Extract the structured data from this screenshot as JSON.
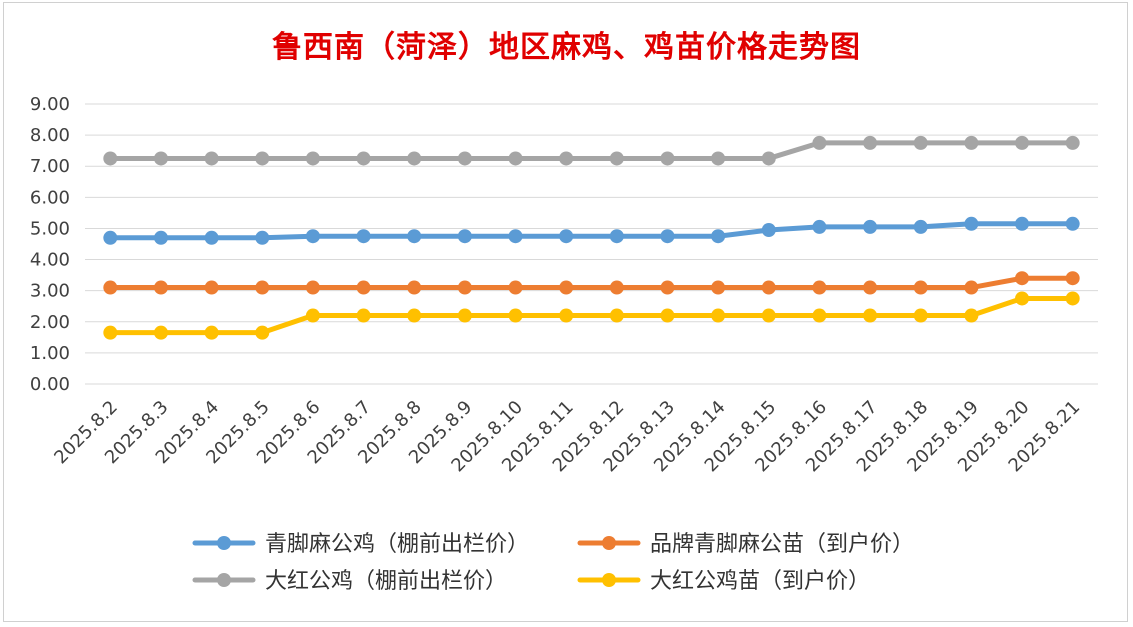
{
  "chart_data": {
    "type": "line",
    "title": "鲁西南（菏泽）地区麻鸡、鸡苗价格走势图",
    "xlabel": "",
    "ylabel": "",
    "ylim": [
      0,
      9
    ],
    "y_ticks": [
      "0.00",
      "1.00",
      "2.00",
      "3.00",
      "4.00",
      "5.00",
      "6.00",
      "7.00",
      "8.00",
      "9.00"
    ],
    "grid": true,
    "legend_position": "bottom",
    "categories": [
      "2025.8.2",
      "2025.8.3",
      "2025.8.4",
      "2025.8.5",
      "2025.8.6",
      "2025.8.7",
      "2025.8.8",
      "2025.8.9",
      "2025.8.10",
      "2025.8.11",
      "2025.8.12",
      "2025.8.13",
      "2025.8.14",
      "2025.8.15",
      "2025.8.16",
      "2025.8.17",
      "2025.8.18",
      "2025.8.19",
      "2025.8.20",
      "2025.8.21"
    ],
    "series": [
      {
        "name": "青脚麻公鸡（棚前出栏价）",
        "color": "#5b9bd5",
        "values": [
          4.7,
          4.7,
          4.7,
          4.7,
          4.75,
          4.75,
          4.75,
          4.75,
          4.75,
          4.75,
          4.75,
          4.75,
          4.75,
          4.95,
          5.05,
          5.05,
          5.05,
          5.15,
          5.15,
          5.15
        ]
      },
      {
        "name": "品牌青脚麻公苗（到户价）",
        "color": "#ed7d31",
        "values": [
          3.1,
          3.1,
          3.1,
          3.1,
          3.1,
          3.1,
          3.1,
          3.1,
          3.1,
          3.1,
          3.1,
          3.1,
          3.1,
          3.1,
          3.1,
          3.1,
          3.1,
          3.1,
          3.4,
          3.4
        ]
      },
      {
        "name": "大红公鸡（棚前出栏价）",
        "color": "#a5a5a5",
        "values": [
          7.25,
          7.25,
          7.25,
          7.25,
          7.25,
          7.25,
          7.25,
          7.25,
          7.25,
          7.25,
          7.25,
          7.25,
          7.25,
          7.25,
          7.75,
          7.75,
          7.75,
          7.75,
          7.75,
          7.75
        ]
      },
      {
        "name": "大红公鸡苗（到户价）",
        "color": "#ffc000",
        "values": [
          1.65,
          1.65,
          1.65,
          1.65,
          2.2,
          2.2,
          2.2,
          2.2,
          2.2,
          2.2,
          2.2,
          2.2,
          2.2,
          2.2,
          2.2,
          2.2,
          2.2,
          2.2,
          2.75,
          2.75
        ]
      }
    ]
  }
}
